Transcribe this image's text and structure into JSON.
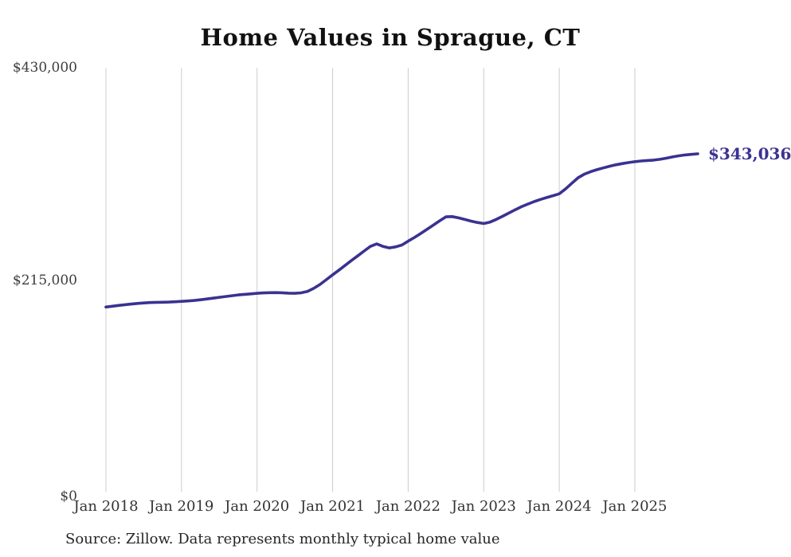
{
  "chart": {
    "title": "Home Values in Sprague, CT",
    "end_label": "$343,036",
    "source": "Source: Zillow. Data represents monthly typical home value"
  },
  "colors": {
    "line": "#3a3291",
    "end_label": "#3a3291",
    "gridline": "#cccccc",
    "axis_text": "#3d3d3d",
    "title_text": "#111111",
    "source_text": "#262626"
  },
  "chart_data": {
    "type": "line",
    "title": "Home Values in Sprague, CT",
    "xlabel": "",
    "ylabel": "",
    "ylim": [
      0,
      430000
    ],
    "grid": "vertical-only",
    "legend": "none",
    "y_ticks": [
      {
        "value": 430000,
        "label": "$430,000"
      },
      {
        "value": 215000,
        "label": "$215,000"
      },
      {
        "value": 0,
        "label": "$0"
      }
    ],
    "x_tick_month_indices": [
      0,
      12,
      24,
      36,
      48,
      60,
      72,
      84
    ],
    "x_tick_labels": [
      "Jan 2018",
      "Jan 2019",
      "Jan 2020",
      "Jan 2021",
      "Jan 2022",
      "Jan 2023",
      "Jan 2024",
      "Jan 2025"
    ],
    "series_name": "Typical home value (USD)",
    "latest_value": 343036,
    "categories": [
      "2018-01",
      "2018-02",
      "2018-03",
      "2018-04",
      "2018-05",
      "2018-06",
      "2018-07",
      "2018-08",
      "2018-09",
      "2018-10",
      "2018-11",
      "2018-12",
      "2019-01",
      "2019-02",
      "2019-03",
      "2019-04",
      "2019-05",
      "2019-06",
      "2019-07",
      "2019-08",
      "2019-09",
      "2019-10",
      "2019-11",
      "2019-12",
      "2020-01",
      "2020-02",
      "2020-03",
      "2020-04",
      "2020-05",
      "2020-06",
      "2020-07",
      "2020-08",
      "2020-09",
      "2020-10",
      "2020-11",
      "2020-12",
      "2021-01",
      "2021-02",
      "2021-03",
      "2021-04",
      "2021-05",
      "2021-06",
      "2021-07",
      "2021-08",
      "2021-09",
      "2021-10",
      "2021-11",
      "2021-12",
      "2022-01",
      "2022-02",
      "2022-03",
      "2022-04",
      "2022-05",
      "2022-06",
      "2022-07",
      "2022-08",
      "2022-09",
      "2022-10",
      "2022-11",
      "2022-12",
      "2023-01",
      "2023-02",
      "2023-03",
      "2023-04",
      "2023-05",
      "2023-06",
      "2023-07",
      "2023-08",
      "2023-09",
      "2023-10",
      "2023-11",
      "2023-12",
      "2024-01",
      "2024-02",
      "2024-03",
      "2024-04",
      "2024-05",
      "2024-06",
      "2024-07",
      "2024-08",
      "2024-09",
      "2024-10",
      "2024-11",
      "2024-12",
      "2025-01",
      "2025-02",
      "2025-03",
      "2025-04",
      "2025-05",
      "2025-06",
      "2025-07",
      "2025-08",
      "2025-09",
      "2025-10",
      "2025-11"
    ],
    "values": [
      188200,
      189000,
      189800,
      190500,
      191200,
      191800,
      192300,
      192700,
      192900,
      193000,
      193200,
      193500,
      193900,
      194300,
      194800,
      195500,
      196300,
      197100,
      198000,
      198800,
      199600,
      200400,
      201000,
      201500,
      202000,
      202400,
      202700,
      202800,
      202600,
      202200,
      202000,
      202500,
      204000,
      207000,
      211000,
      215800,
      220700,
      225500,
      230400,
      235300,
      240000,
      244800,
      249500,
      252000,
      249500,
      247900,
      249000,
      250800,
      254800,
      258500,
      262500,
      266800,
      271000,
      275300,
      279300,
      279600,
      278300,
      276700,
      275000,
      273600,
      272600,
      274000,
      276800,
      279900,
      283200,
      286500,
      289600,
      292200,
      294700,
      296900,
      298800,
      300700,
      302600,
      307500,
      313300,
      318900,
      322500,
      325000,
      327000,
      328800,
      330500,
      331900,
      333100,
      334200,
      335100,
      335800,
      336300,
      336700,
      337500,
      338600,
      339900,
      341000,
      341900,
      342500,
      343036
    ]
  }
}
